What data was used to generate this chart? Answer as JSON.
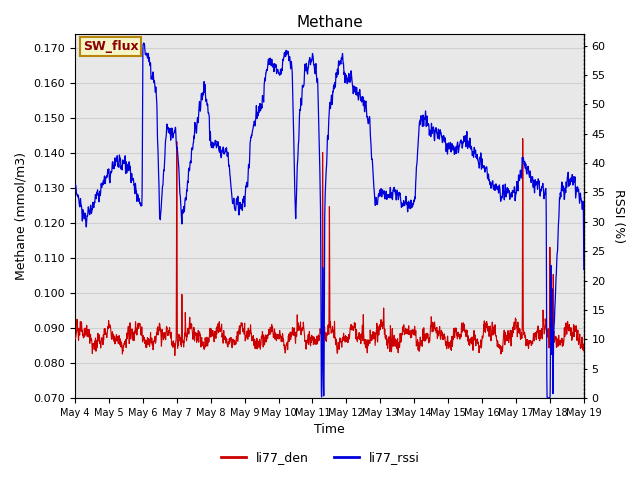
{
  "title": "Methane",
  "xlabel": "Time",
  "ylabel_left": "Methane (mmol/m3)",
  "ylabel_right": "RSSI (%)",
  "annotation_text": "SW_flux",
  "annotation_bg": "#f5f5c8",
  "annotation_border": "#b8860b",
  "xlim_start": 0,
  "xlim_end": 15.0,
  "ylim_left": [
    0.07,
    0.174
  ],
  "ylim_right": [
    0,
    62
  ],
  "yticks_left": [
    0.07,
    0.08,
    0.09,
    0.1,
    0.11,
    0.12,
    0.13,
    0.14,
    0.15,
    0.16,
    0.17
  ],
  "yticks_right": [
    0,
    5,
    10,
    15,
    20,
    25,
    30,
    35,
    40,
    45,
    50,
    55,
    60
  ],
  "xtick_labels": [
    "May 4",
    "May 5",
    "May 6",
    "May 7",
    "May 8",
    "May 9",
    "May 10",
    "May 11",
    "May 12",
    "May 13",
    "May 14",
    "May 15",
    "May 16",
    "May 17",
    "May 18",
    "May 19"
  ],
  "line_red_color": "#cc0000",
  "line_blue_color": "#0000dd",
  "grid_color": "#d0d0d0",
  "bg_color": "#e8e8e8",
  "fig_bg_color": "#ffffff",
  "legend_red_label": "li77_den",
  "legend_blue_label": "li77_rssi"
}
